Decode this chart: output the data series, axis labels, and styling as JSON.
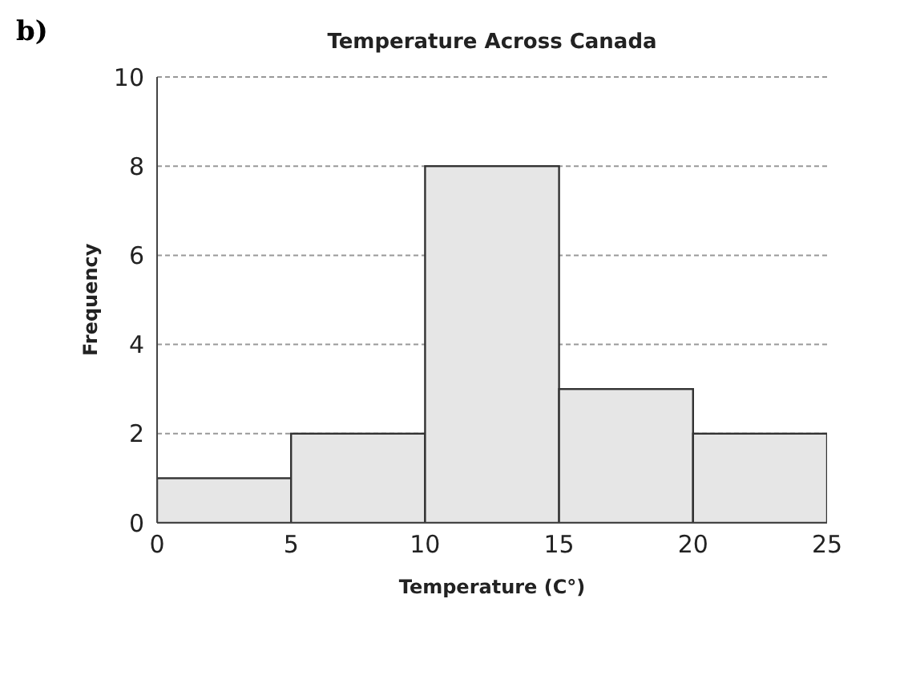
{
  "chart_data": {
    "type": "histogram",
    "title": "Temperature Across Canada",
    "xlabel": "Temperature  (C°)",
    "ylabel": "Frequency",
    "annotations": [
      "b)"
    ],
    "bins": [
      0,
      5,
      10,
      15,
      20,
      25
    ],
    "values": [
      1,
      2,
      8,
      3,
      2
    ],
    "color": "#e6e6e6",
    "xlim": [
      0,
      25
    ],
    "xticks": [
      0,
      5,
      10,
      15,
      20,
      25
    ],
    "ylim": [
      0,
      10
    ],
    "yticks": [
      0,
      2,
      4,
      6,
      8,
      10
    ],
    "grid": "y"
  }
}
